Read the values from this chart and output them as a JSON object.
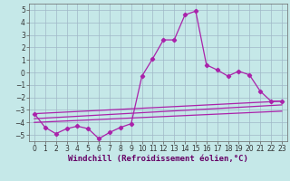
{
  "xlabel": "Windchill (Refroidissement éolien,°C)",
  "bg_color": "#c5e8e8",
  "grid_color": "#a0b8c8",
  "line_color": "#aa22aa",
  "xlim": [
    -0.5,
    23.5
  ],
  "ylim": [
    -5.5,
    5.5
  ],
  "xticks": [
    0,
    1,
    2,
    3,
    4,
    5,
    6,
    7,
    8,
    9,
    10,
    11,
    12,
    13,
    14,
    15,
    16,
    17,
    18,
    19,
    20,
    21,
    22,
    23
  ],
  "yticks": [
    -5,
    -4,
    -3,
    -2,
    -1,
    0,
    1,
    2,
    3,
    4,
    5
  ],
  "curve1_x": [
    0,
    1,
    2,
    3,
    4,
    5,
    6,
    7,
    8,
    9,
    10,
    11,
    12,
    13,
    14,
    15,
    16,
    17,
    18,
    19,
    20,
    21,
    22,
    23
  ],
  "curve1_y": [
    -3.3,
    -4.4,
    -4.9,
    -4.5,
    -4.3,
    -4.5,
    -5.3,
    -4.8,
    -4.4,
    -4.1,
    -0.3,
    1.1,
    2.6,
    2.6,
    4.6,
    4.9,
    0.6,
    0.2,
    -0.3,
    0.1,
    -0.2,
    -1.5,
    -2.3,
    -2.3
  ],
  "line1_x": [
    0,
    23
  ],
  "line1_y": [
    -3.3,
    -2.3
  ],
  "line2_x": [
    0,
    23
  ],
  "line2_y": [
    -3.7,
    -2.6
  ],
  "line3_x": [
    0,
    23
  ],
  "line3_y": [
    -4.0,
    -3.1
  ],
  "xlabel_fontsize": 6.5,
  "tick_fontsize": 5.5
}
